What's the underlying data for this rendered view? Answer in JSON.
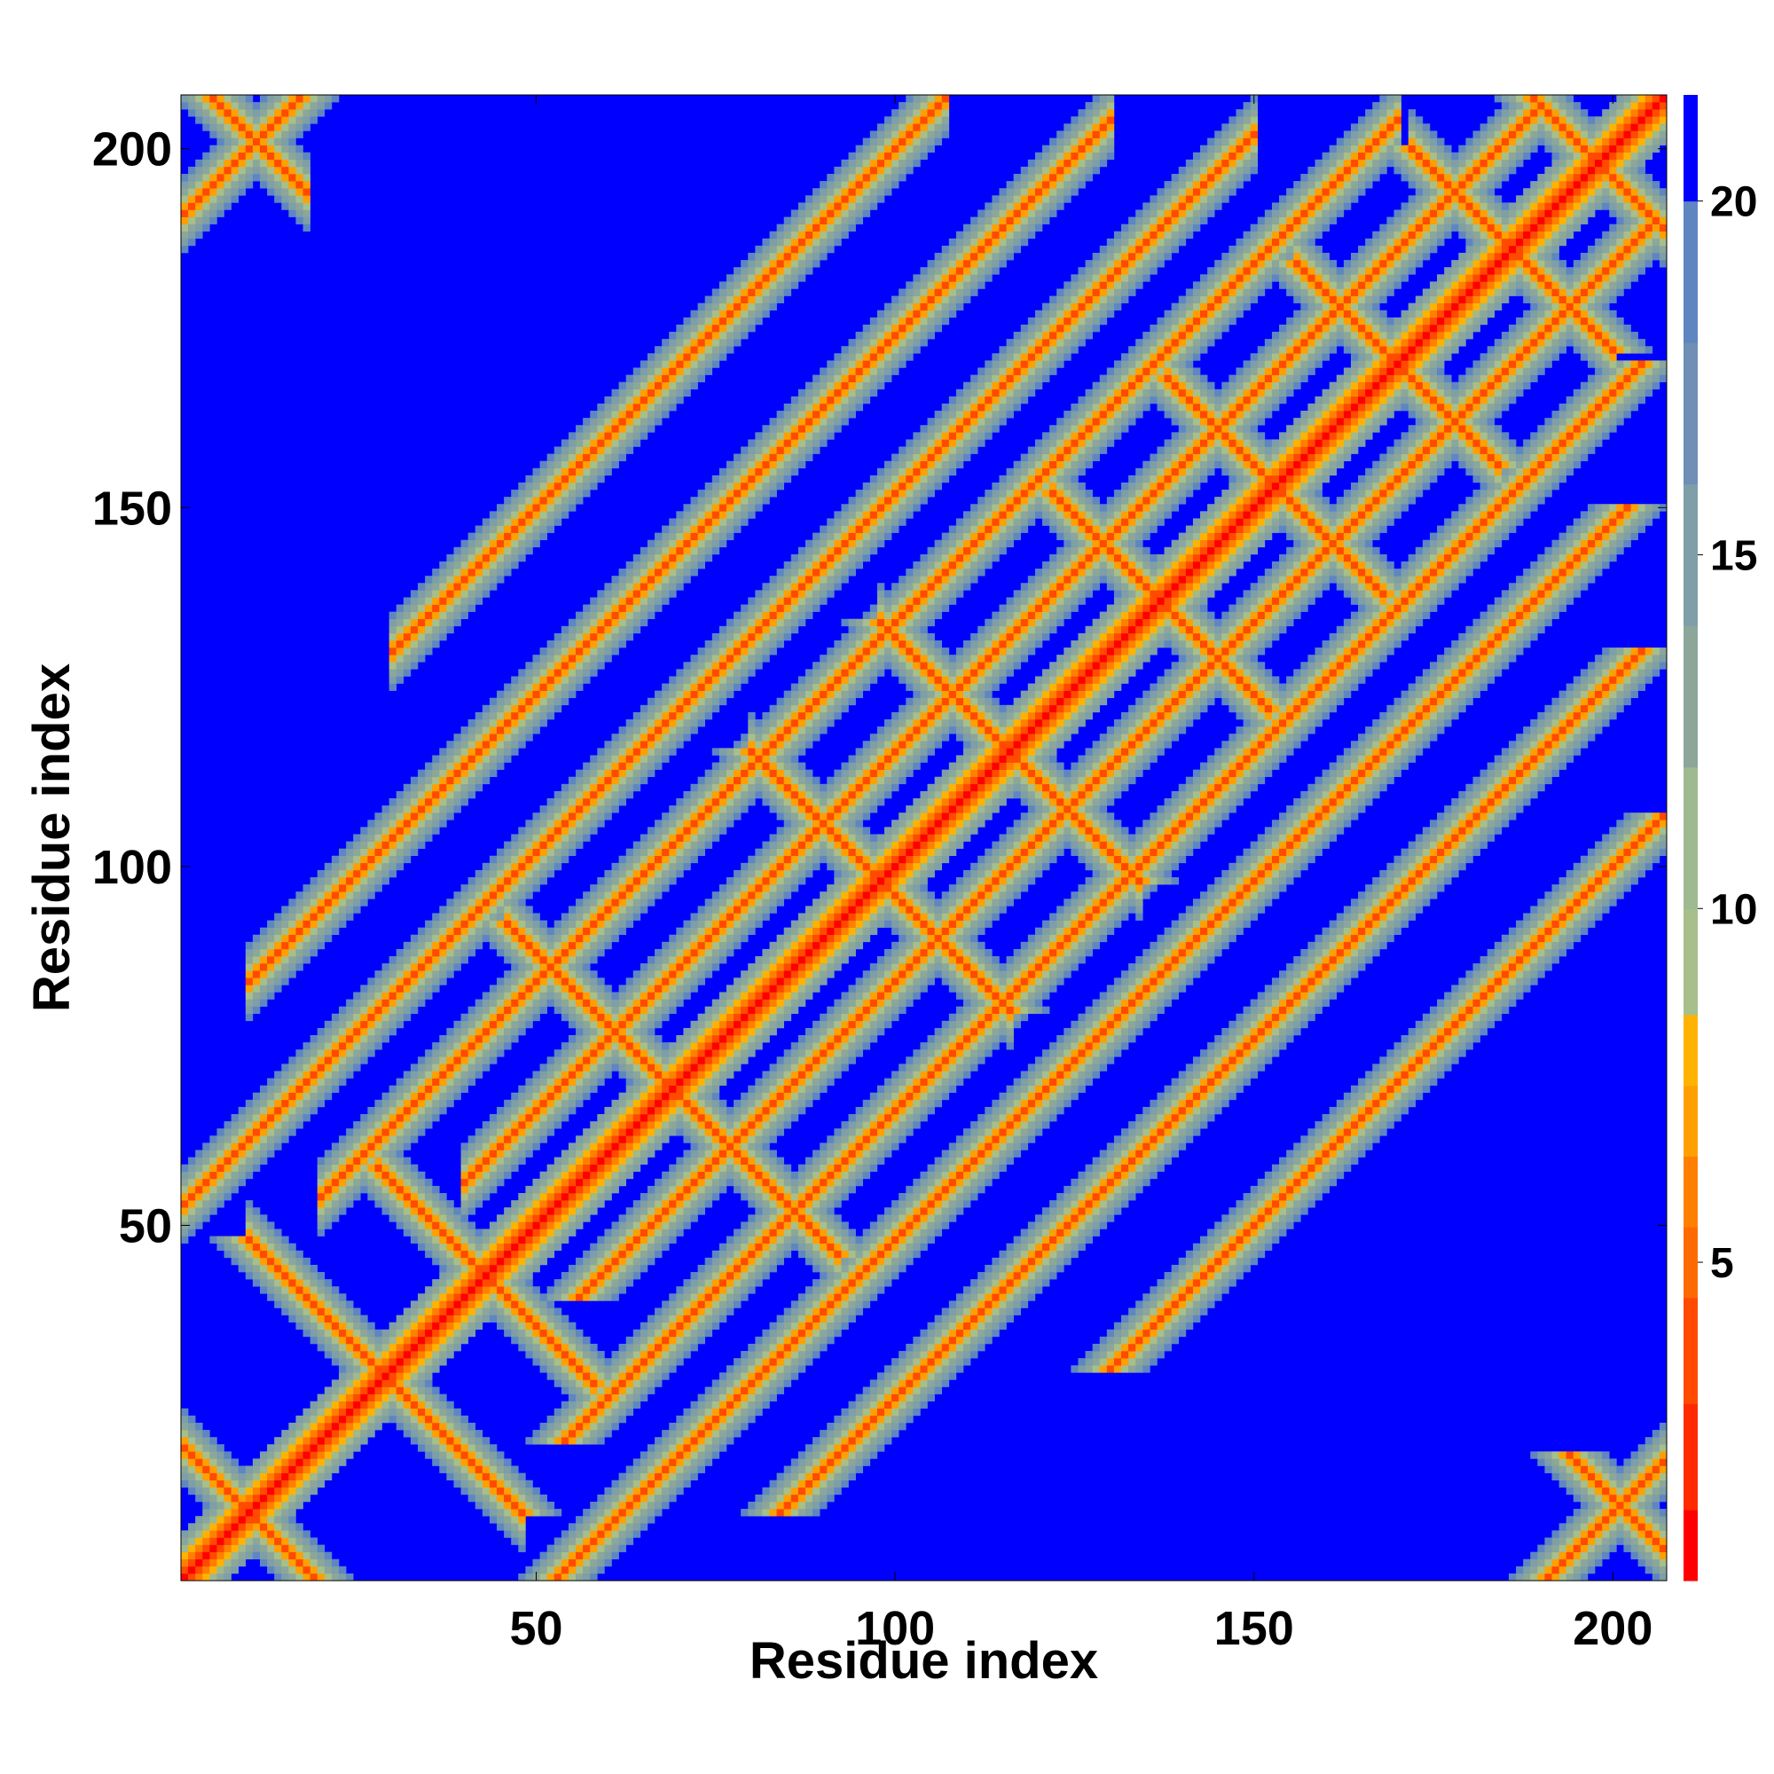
{
  "chart_data": {
    "type": "heatmap",
    "title": "",
    "xlabel": "Residue index",
    "ylabel": "Residue index",
    "n_residues": 207,
    "xlim": [
      1,
      207
    ],
    "ylim": [
      1,
      207
    ],
    "x_ticks": [
      50,
      100,
      150,
      200
    ],
    "y_ticks": [
      50,
      100,
      150,
      200
    ],
    "colorbar": {
      "range": [
        0.5,
        21.5
      ],
      "ticks": [
        5,
        10,
        15,
        20
      ],
      "levels": [
        {
          "max": 1.5,
          "color": "#ff0000"
        },
        {
          "max": 3.0,
          "color": "#ff2a00"
        },
        {
          "max": 4.5,
          "color": "#ff4a00"
        },
        {
          "max": 5.5,
          "color": "#ff6a00"
        },
        {
          "max": 6.5,
          "color": "#ff8000"
        },
        {
          "max": 7.5,
          "color": "#ffa000"
        },
        {
          "max": 8.5,
          "color": "#ffb300"
        },
        {
          "max": 10.0,
          "color": "#a7bf8a"
        },
        {
          "max": 12.0,
          "color": "#9fb990"
        },
        {
          "max": 14.0,
          "color": "#8ca69a"
        },
        {
          "max": 16.0,
          "color": "#7e9ea8"
        },
        {
          "max": 18.0,
          "color": "#6f8fb5"
        },
        {
          "max": 20.0,
          "color": "#5e86c0"
        },
        {
          "max": 21.5,
          "color": "#0000ff"
        }
      ]
    },
    "contact_bands": [
      {
        "orientation": "anti",
        "center_sum": 20,
        "from": 1,
        "to": 19
      },
      {
        "orientation": "anti",
        "center_sum": 58,
        "from": 10,
        "to": 48
      },
      {
        "orientation": "anti",
        "center_sum": 86,
        "from": 28,
        "to": 58
      },
      {
        "orientation": "anti",
        "center_sum": 138,
        "from": 46,
        "to": 92
      },
      {
        "orientation": "anti",
        "center_sum": 196,
        "from": 80,
        "to": 116
      },
      {
        "orientation": "anti",
        "center_sum": 232,
        "from": 98,
        "to": 134
      },
      {
        "orientation": "anti",
        "center_sum": 274,
        "from": 122,
        "to": 152
      },
      {
        "orientation": "anti",
        "center_sum": 306,
        "from": 138,
        "to": 168
      },
      {
        "orientation": "anti",
        "center_sum": 340,
        "from": 156,
        "to": 184
      },
      {
        "orientation": "anti",
        "center_sum": 372,
        "from": 172,
        "to": 200
      },
      {
        "orientation": "anti",
        "center_sum": 396,
        "from": 188,
        "to": 207
      },
      {
        "orientation": "anti",
        "center_sum": 212,
        "from": 1,
        "to": 18
      },
      {
        "orientation": "par",
        "offset": 52,
        "from": 1,
        "to": 150
      },
      {
        "orientation": "par",
        "offset": 34,
        "from": 20,
        "to": 170
      },
      {
        "orientation": "par",
        "offset": 74,
        "from": 10,
        "to": 130
      },
      {
        "orientation": "par",
        "offset": 100,
        "from": 30,
        "to": 107
      },
      {
        "orientation": "par",
        "offset": 16,
        "from": 40,
        "to": 190
      },
      {
        "orientation": "par",
        "offset": 190,
        "from": 1,
        "to": 17
      },
      {
        "orientation": "par",
        "offset": -190,
        "from": 191,
        "to": 207
      }
    ]
  }
}
